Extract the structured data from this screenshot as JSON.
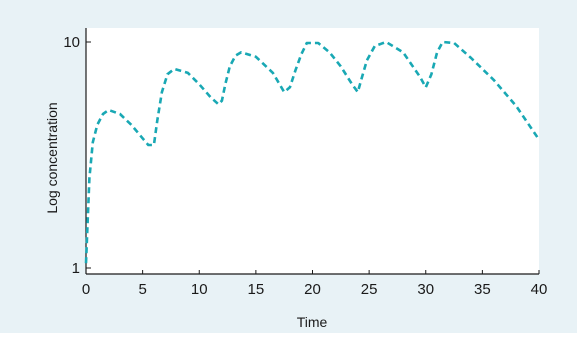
{
  "chart_data": {
    "type": "line",
    "title": "",
    "xlabel": "Time",
    "ylabel": "Log concentration",
    "xlim": [
      0,
      40
    ],
    "ylim": [
      1,
      10
    ],
    "y_scale": "log",
    "x_ticks": [
      0,
      5,
      10,
      15,
      20,
      25,
      30,
      35,
      40
    ],
    "y_ticks": [
      1,
      10
    ],
    "grid": false,
    "line_style": "dashed",
    "series": [
      {
        "color": "#19a8b4",
        "x": [
          0,
          0.3,
          0.6,
          1,
          1.5,
          2,
          3,
          4,
          5,
          5.5,
          6,
          6.3,
          6.7,
          7.2,
          7.8,
          9,
          10,
          11,
          11.7,
          12,
          12.3,
          12.7,
          13.2,
          13.7,
          15,
          16.5,
          17.5,
          18,
          18.5,
          19,
          19.5,
          20.5,
          21.5,
          22.5,
          23.5,
          24,
          24.3,
          24.8,
          25.5,
          26.5,
          28,
          29.5,
          30,
          30.5,
          31,
          31.5,
          32.5,
          34,
          36,
          38,
          40
        ],
        "y": [
          1.05,
          2.5,
          3.6,
          4.3,
          4.8,
          5.0,
          4.8,
          4.3,
          3.75,
          3.5,
          3.5,
          4.5,
          6.0,
          7.2,
          7.6,
          7.3,
          6.5,
          5.7,
          5.3,
          5.5,
          6.5,
          7.8,
          8.7,
          9.0,
          8.6,
          7.3,
          6.0,
          6.3,
          7.5,
          8.8,
          9.9,
          9.9,
          9.0,
          7.8,
          6.5,
          6.0,
          6.8,
          8.3,
          9.6,
          10.0,
          9.0,
          7.0,
          6.3,
          7.2,
          9.0,
          10.0,
          9.9,
          8.5,
          6.8,
          5.2,
          3.7
        ]
      }
    ]
  }
}
